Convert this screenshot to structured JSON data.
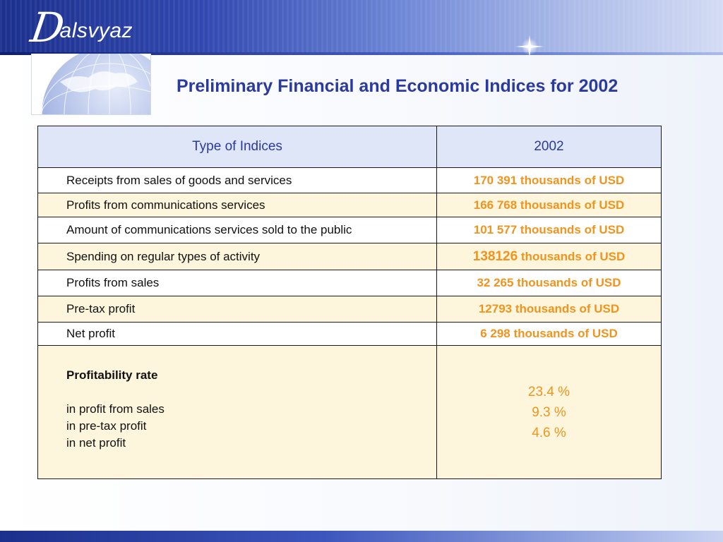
{
  "header": {
    "logo_mark": "D",
    "logo_text": "alsvyaz"
  },
  "title": "Preliminary Financial and Economic Indices for 2002",
  "table": {
    "headers": [
      "Type of Indices",
      "2002"
    ],
    "rows": [
      {
        "label": "Receipts from sales of goods and services",
        "value": "170 391 thousands of USD"
      },
      {
        "label": "Profits from communications services",
        "value": "166 768 thousands of USD"
      },
      {
        "label": "Amount of communications services sold to the public",
        "value": "101 577 thousands of USD"
      },
      {
        "label": "Spending on regular types of activity",
        "value_number": "138126",
        "value_unit": " thousands of USD"
      },
      {
        "label": "Profits from sales",
        "value": "32 265 thousands of USD"
      },
      {
        "label": "Pre-tax profit",
        "value": "12793 thousands of USD"
      },
      {
        "label": "Net profit",
        "value": "6 298 thousands of USD"
      }
    ],
    "profitability": {
      "title": "Profitability rate",
      "items": [
        "in profit from sales",
        "in pre-tax profit",
        "in net profit"
      ],
      "values": [
        "23.4 %",
        "9.3 %",
        "4.6 %"
      ]
    }
  },
  "colors": {
    "header_dark": "#1b2f8c",
    "title": "#2b3a9e",
    "value": "#f0941e",
    "header_cell_bg": "#dfe6f8",
    "cream_row_bg": "#fdf6dc"
  },
  "icons": [
    "logo-icon",
    "globe-icon",
    "sparkle-icon"
  ]
}
